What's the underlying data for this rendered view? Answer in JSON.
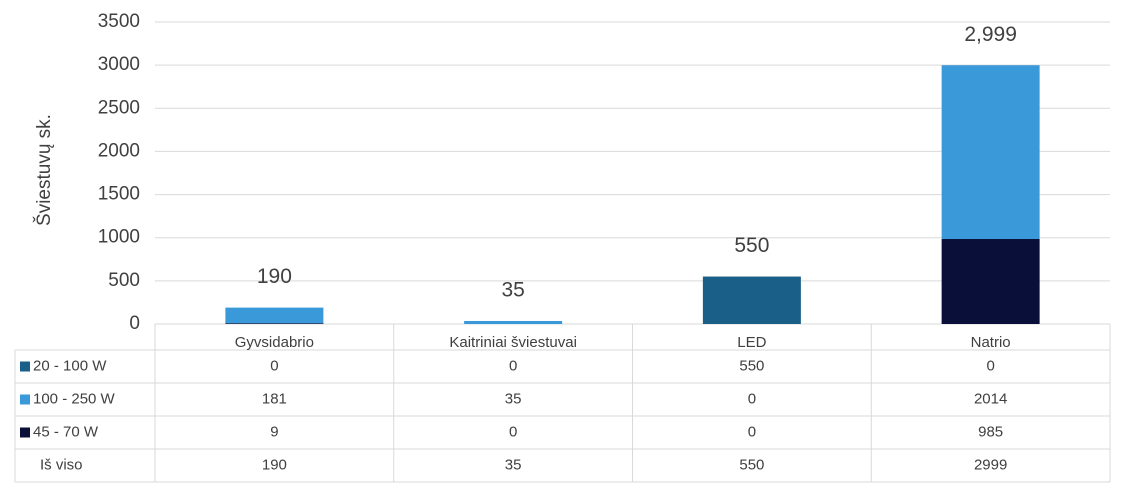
{
  "chart_data": {
    "type": "stacked_bar",
    "y_label": "Šviestuvų sk.",
    "categories": [
      "Gyvsidabrio",
      "Kaitriniai šviestuvai",
      "LED",
      "Natrio"
    ],
    "series": [
      {
        "name": "20 - 100 W",
        "color": "#1a5f87",
        "values": [
          0,
          0,
          550,
          0
        ]
      },
      {
        "name": "100 - 250 W",
        "color": "#3a9ad9",
        "values": [
          181,
          35,
          0,
          2014
        ]
      },
      {
        "name": "45 - 70 W",
        "color": "#0a0f3a",
        "values": [
          9,
          0,
          0,
          985
        ]
      }
    ],
    "totals": {
      "name": "Iš viso",
      "values": [
        190,
        35,
        550,
        2999
      ],
      "value_labels": [
        "190",
        "35",
        "550",
        "2,999"
      ]
    },
    "ylim": [
      0,
      3500
    ],
    "yticks": [
      0,
      500,
      1000,
      1500,
      2000,
      2500,
      3000,
      3500
    ],
    "grid": true
  }
}
